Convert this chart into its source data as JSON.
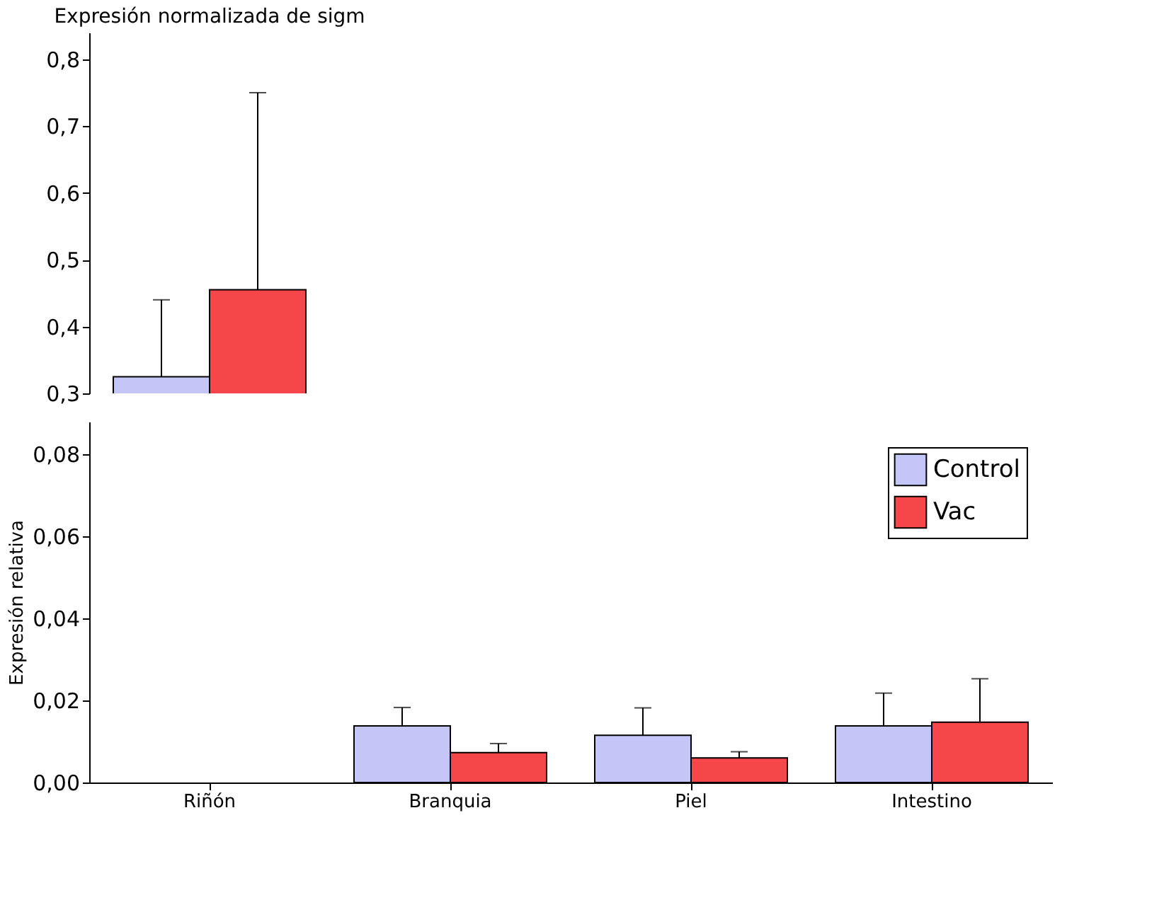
{
  "chart_data": [
    {
      "type": "bar",
      "title": "Expresión normalizada de sigm",
      "categories": [
        null
      ],
      "series": [
        {
          "color": "#c3c6f7",
          "values": [
            0.325
          ],
          "errors": [
            [
              0.325,
              0.44
            ]
          ]
        },
        {
          "color": "#f5464a",
          "values": [
            0.455
          ],
          "errors": [
            [
              0.455,
              0.75
            ]
          ]
        }
      ],
      "ylim": [
        0.3,
        0.84
      ],
      "yticks": [
        {
          "value": 0.3,
          "label": "0,3"
        },
        {
          "value": 0.4,
          "label": "0,4"
        },
        {
          "value": 0.5,
          "label": "0,5"
        },
        {
          "value": 0.6,
          "label": "0,6"
        },
        {
          "value": 0.7,
          "label": "0,7"
        },
        {
          "value": 0.8,
          "label": "0,8"
        }
      ],
      "tick_labels": "y",
      "grid": false
    },
    {
      "type": "bar",
      "ylabel": "Expresión relativa",
      "categories": [
        "Riñón",
        "Branquia",
        "Piel",
        "Intestino"
      ],
      "series": [
        {
          "name": "Control",
          "color": "#c3c6f7",
          "values": [
            null,
            0.0138,
            0.0115,
            0.0138
          ],
          "errors": [
            null,
            [
              0.0138,
              0.0183
            ],
            [
              0.0115,
              0.0182
            ],
            [
              0.0138,
              0.0218
            ]
          ]
        },
        {
          "name": "Vac",
          "color": "#f5464a",
          "values": [
            null,
            0.0073,
            0.006,
            0.0147
          ],
          "errors": [
            null,
            [
              0.0073,
              0.0095
            ],
            [
              0.006,
              0.0075
            ],
            [
              0.0147,
              0.0253
            ]
          ]
        }
      ],
      "ylim": [
        0,
        0.088
      ],
      "yticks": [
        {
          "value": 0,
          "label": "0,00"
        },
        {
          "value": 0.02,
          "label": "0,02"
        },
        {
          "value": 0.04,
          "label": "0,04"
        },
        {
          "value": 0.06,
          "label": "0,06"
        },
        {
          "value": 0.08,
          "label": "0,08"
        }
      ],
      "legend": "top right",
      "grid": false
    }
  ]
}
